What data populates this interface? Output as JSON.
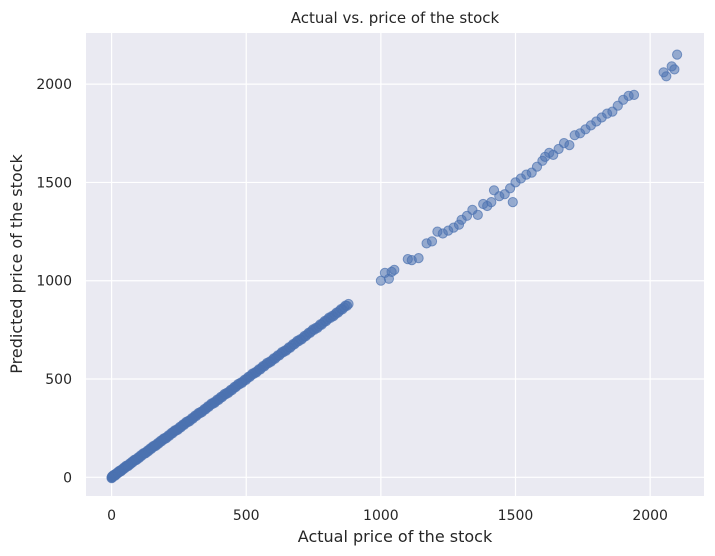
{
  "chart_data": {
    "type": "scatter",
    "title": "Actual vs. price of the stock",
    "xlabel": "Actual price of the stock",
    "ylabel": "Predicted price of the stock",
    "xlim": [
      -95,
      2200
    ],
    "ylim": [
      -95,
      2260
    ],
    "xticks": [
      0,
      500,
      1000,
      1500,
      2000
    ],
    "yticks": [
      0,
      500,
      1000,
      1500,
      2000
    ],
    "grid": true,
    "colors": {
      "background": "#eaeaf2",
      "grid": "#ffffff",
      "points": "#4c72b0"
    },
    "dense_segment": {
      "from": 0,
      "to": 880,
      "count": 220
    },
    "points": [
      [
        1000,
        1000
      ],
      [
        1015,
        1040
      ],
      [
        1030,
        1010
      ],
      [
        1040,
        1045
      ],
      [
        1050,
        1055
      ],
      [
        1100,
        1110
      ],
      [
        1115,
        1105
      ],
      [
        1140,
        1115
      ],
      [
        1170,
        1190
      ],
      [
        1190,
        1200
      ],
      [
        1210,
        1250
      ],
      [
        1230,
        1240
      ],
      [
        1250,
        1255
      ],
      [
        1270,
        1270
      ],
      [
        1290,
        1285
      ],
      [
        1300,
        1310
      ],
      [
        1320,
        1330
      ],
      [
        1340,
        1360
      ],
      [
        1360,
        1335
      ],
      [
        1380,
        1390
      ],
      [
        1395,
        1380
      ],
      [
        1410,
        1400
      ],
      [
        1420,
        1460
      ],
      [
        1440,
        1430
      ],
      [
        1460,
        1440
      ],
      [
        1480,
        1470
      ],
      [
        1490,
        1400
      ],
      [
        1500,
        1500
      ],
      [
        1520,
        1520
      ],
      [
        1540,
        1540
      ],
      [
        1560,
        1550
      ],
      [
        1580,
        1580
      ],
      [
        1600,
        1610
      ],
      [
        1610,
        1630
      ],
      [
        1625,
        1650
      ],
      [
        1640,
        1640
      ],
      [
        1660,
        1670
      ],
      [
        1680,
        1700
      ],
      [
        1700,
        1690
      ],
      [
        1720,
        1740
      ],
      [
        1740,
        1750
      ],
      [
        1760,
        1770
      ],
      [
        1780,
        1790
      ],
      [
        1800,
        1810
      ],
      [
        1820,
        1830
      ],
      [
        1840,
        1850
      ],
      [
        1860,
        1860
      ],
      [
        1880,
        1890
      ],
      [
        1900,
        1920
      ],
      [
        1920,
        1940
      ],
      [
        1940,
        1945
      ],
      [
        2050,
        2060
      ],
      [
        2060,
        2040
      ],
      [
        2080,
        2090
      ],
      [
        2090,
        2075
      ],
      [
        2100,
        2150
      ]
    ]
  }
}
